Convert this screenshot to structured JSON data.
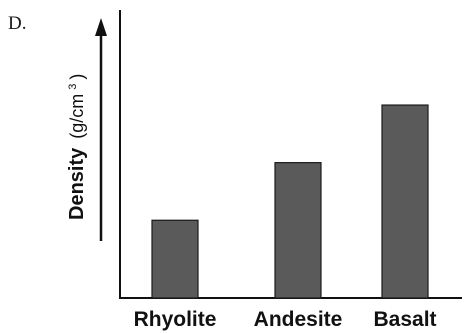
{
  "option_label": "D.",
  "chart_data": {
    "type": "bar",
    "categories": [
      "Rhyolite",
      "Andesite",
      "Basalt"
    ],
    "values": [
      2.7,
      4.7,
      6.7
    ],
    "ylabel": "Density (g/cm³)",
    "ylabel_main": "Density",
    "ylabel_unit_open": "(g/cm",
    "ylabel_unit_sup": "3",
    "ylabel_unit_close": ")",
    "ylim": [
      0,
      10
    ],
    "y_tick_labels": false,
    "grid": false,
    "legend": "none",
    "colors": {
      "bar_fill": "#5a5a5a",
      "bar_stroke": "#1a1a1a",
      "axis": "#111111"
    }
  }
}
